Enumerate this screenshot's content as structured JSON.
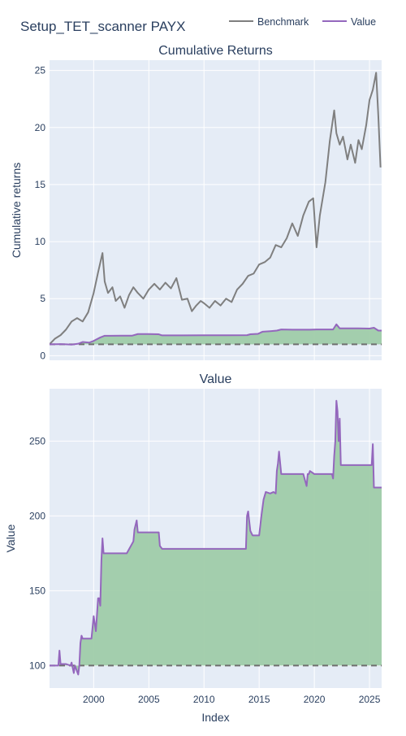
{
  "title": "Setup_TET_scanner PAYX",
  "legend": {
    "placement": "top-right",
    "items": [
      {
        "label": "Benchmark",
        "color": "#7f7f7f"
      },
      {
        "label": "Value",
        "color": "#9467bd"
      }
    ]
  },
  "colors": {
    "plot_bg": "#e5ecf6",
    "grid": "#ffffff",
    "benchmark": "#7f7f7f",
    "value": "#9467bd",
    "fill": "#9fcca9",
    "baseline": "#6f6f6f"
  },
  "chart_data": [
    {
      "type": "line",
      "title": "Cumulative Returns",
      "xlabel": "",
      "ylabel": "Cumulative returns",
      "xlim": [
        1996.0,
        2026.1
      ],
      "ylim": [
        -0.4,
        25.9
      ],
      "yticks": [
        0,
        5,
        10,
        15,
        20,
        25
      ],
      "xticks": [
        2000,
        2005,
        2010,
        2015,
        2020,
        2025
      ],
      "grid": true,
      "baseline": 1.0,
      "series": [
        {
          "name": "Benchmark",
          "x": [
            1996.0,
            1996.5,
            1997.0,
            1997.5,
            1998.0,
            1998.5,
            1999.0,
            1999.5,
            2000.0,
            2000.4,
            2000.8,
            2001.0,
            2001.3,
            2001.7,
            2002.0,
            2002.4,
            2002.8,
            2003.2,
            2003.6,
            2004.0,
            2004.5,
            2005.0,
            2005.5,
            2006.0,
            2006.5,
            2007.0,
            2007.5,
            2008.0,
            2008.5,
            2008.9,
            2009.3,
            2009.7,
            2010.0,
            2010.5,
            2011.0,
            2011.5,
            2012.0,
            2012.5,
            2013.0,
            2013.5,
            2014.0,
            2014.5,
            2015.0,
            2015.5,
            2016.0,
            2016.5,
            2017.0,
            2017.5,
            2018.0,
            2018.5,
            2019.0,
            2019.5,
            2019.9,
            2020.2,
            2020.5,
            2021.0,
            2021.4,
            2021.8,
            2022.0,
            2022.3,
            2022.6,
            2023.0,
            2023.3,
            2023.7,
            2024.0,
            2024.3,
            2024.7,
            2025.0,
            2025.3,
            2025.6,
            2025.8,
            2026.0
          ],
          "y": [
            1.0,
            1.5,
            1.8,
            2.3,
            3.0,
            3.3,
            3.0,
            3.8,
            5.5,
            7.3,
            9.0,
            6.5,
            5.5,
            6.0,
            4.8,
            5.2,
            4.2,
            5.3,
            6.0,
            5.5,
            5.0,
            5.8,
            6.3,
            5.8,
            6.4,
            5.9,
            6.8,
            4.9,
            5.0,
            3.9,
            4.4,
            4.8,
            4.6,
            4.2,
            4.8,
            4.4,
            5.0,
            4.7,
            5.8,
            6.3,
            7.0,
            7.2,
            8.0,
            8.2,
            8.6,
            9.7,
            9.5,
            10.3,
            11.6,
            10.5,
            12.3,
            13.5,
            13.8,
            9.5,
            12.3,
            15.2,
            18.8,
            21.5,
            19.5,
            18.5,
            19.2,
            17.2,
            18.5,
            16.9,
            18.9,
            18.1,
            20.2,
            22.4,
            23.3,
            24.8,
            21.0,
            16.5
          ]
        },
        {
          "name": "Value",
          "x": [
            1996.0,
            1997.0,
            1997.5,
            1998.0,
            1998.6,
            1999.0,
            1999.6,
            2000.0,
            2000.6,
            2001.0,
            2001.5,
            2002.5,
            2003.5,
            2004.0,
            2005.0,
            2005.9,
            2006.2,
            2008.0,
            2010.0,
            2012.0,
            2013.9,
            2014.2,
            2014.9,
            2015.3,
            2016.0,
            2016.6,
            2017.0,
            2018.0,
            2019.0,
            2019.6,
            2020.2,
            2021.0,
            2021.7,
            2022.0,
            2022.3,
            2023.0,
            2024.0,
            2025.0,
            2025.4,
            2025.8,
            2026.1
          ],
          "y": [
            1.0,
            1.02,
            1.0,
            0.97,
            1.05,
            1.2,
            1.15,
            1.3,
            1.6,
            1.75,
            1.75,
            1.76,
            1.76,
            1.9,
            1.9,
            1.88,
            1.78,
            1.78,
            1.79,
            1.79,
            1.8,
            1.88,
            1.92,
            2.1,
            2.15,
            2.2,
            2.3,
            2.28,
            2.28,
            2.28,
            2.3,
            2.3,
            2.3,
            2.75,
            2.4,
            2.4,
            2.4,
            2.38,
            2.45,
            2.2,
            2.2
          ]
        }
      ]
    },
    {
      "type": "area",
      "title": "Value",
      "xlabel": "Index",
      "ylabel": "Value",
      "xlim": [
        1996.0,
        2026.1
      ],
      "ylim": [
        85,
        285
      ],
      "yticks": [
        100,
        150,
        200,
        250
      ],
      "xticks": [
        2000,
        2005,
        2010,
        2015,
        2020,
        2025
      ],
      "grid": true,
      "baseline": 100,
      "series": [
        {
          "name": "Value",
          "x": [
            1996.0,
            1996.5,
            1996.8,
            1996.9,
            1997.0,
            1997.5,
            1997.9,
            1998.0,
            1998.2,
            1998.3,
            1998.5,
            1998.6,
            1998.7,
            1998.8,
            1998.9,
            1999.0,
            1999.4,
            1999.7,
            1999.8,
            2000.0,
            2000.2,
            2000.4,
            2000.5,
            2000.6,
            2000.7,
            2000.8,
            2000.9,
            2001.0,
            2001.5,
            2002.0,
            2003.0,
            2003.6,
            2003.7,
            2003.9,
            2004.0,
            2004.3,
            2005.0,
            2005.9,
            2006.0,
            2006.2,
            2007.0,
            2009.0,
            2011.0,
            2013.0,
            2013.8,
            2013.9,
            2014.0,
            2014.2,
            2014.4,
            2014.9,
            2015.0,
            2015.2,
            2015.4,
            2015.6,
            2016.0,
            2016.3,
            2016.5,
            2016.6,
            2016.7,
            2016.8,
            2017.0,
            2018.0,
            2019.0,
            2019.3,
            2019.4,
            2019.5,
            2019.6,
            2020.0,
            2021.0,
            2021.6,
            2021.7,
            2021.8,
            2021.9,
            2022.0,
            2022.1,
            2022.2,
            2022.3,
            2022.4,
            2023.0,
            2024.0,
            2025.0,
            2025.2,
            2025.3,
            2025.4,
            2026.1
          ],
          "y": [
            100,
            100,
            100,
            110,
            101,
            101,
            100,
            102,
            95,
            100,
            96,
            94,
            100,
            115,
            120,
            118,
            118,
            118,
            118,
            133,
            123,
            145,
            145,
            140,
            170,
            185,
            175,
            175,
            175,
            175,
            175,
            183,
            191,
            197,
            189,
            189,
            189,
            189,
            180,
            178,
            178,
            178,
            178,
            178,
            178,
            200,
            203,
            190,
            187,
            187,
            187,
            200,
            211,
            216,
            215,
            216,
            215,
            230,
            235,
            243,
            228,
            228,
            228,
            220,
            228,
            228,
            230,
            228,
            228,
            228,
            225,
            240,
            250,
            277,
            270,
            250,
            265,
            234,
            234,
            234,
            234,
            234,
            248,
            219,
            219
          ]
        }
      ]
    }
  ]
}
